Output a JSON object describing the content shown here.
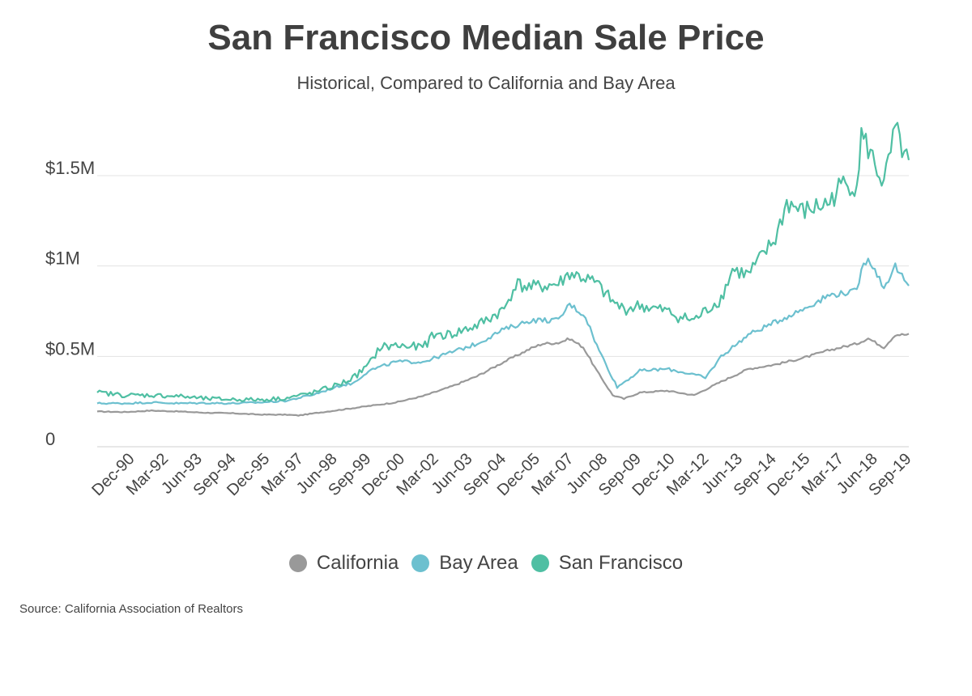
{
  "title": "San Francisco Median Sale Price",
  "subtitle": "Historical,  Compared to California and Bay Area",
  "source": "Source:  California Association of Realtors",
  "legend": [
    {
      "label": "California",
      "color": "#999999"
    },
    {
      "label": "Bay Area",
      "color": "#6cc0cf"
    },
    {
      "label": "San Francisco",
      "color": "#4fbfa3"
    }
  ],
  "chart_data": {
    "type": "line",
    "ylim": [
      0,
      1800000
    ],
    "yticks": [
      {
        "value": 0,
        "label": "0"
      },
      {
        "value": 500000,
        "label": "$0.5M"
      },
      {
        "value": 1000000,
        "label": "$1M"
      },
      {
        "value": 1500000,
        "label": "$1.5M"
      }
    ],
    "xlim": [
      "1990-01",
      "2019-12"
    ],
    "xtick_labels": [
      "Dec-90",
      "Mar-92",
      "Jun-93",
      "Sep-94",
      "Dec-95",
      "Mar-97",
      "Jun-98",
      "Sep-99",
      "Dec-00",
      "Mar-02",
      "Jun-03",
      "Sep-04",
      "Dec-05",
      "Mar-07",
      "Jun-08",
      "Sep-09",
      "Dec-10",
      "Mar-12",
      "Jun-13",
      "Sep-14",
      "Dec-15",
      "Mar-17",
      "Jun-18",
      "Sep-19"
    ],
    "grid": true,
    "legend_position": "bottom",
    "series": [
      {
        "name": "California",
        "color": "#999999",
        "points": [
          [
            "1990-01",
            195000
          ],
          [
            "1991-01",
            192000
          ],
          [
            "1992-01",
            200000
          ],
          [
            "1993-01",
            195000
          ],
          [
            "1994-01",
            188000
          ],
          [
            "1995-01",
            185000
          ],
          [
            "1996-01",
            178000
          ],
          [
            "1997-01",
            177000
          ],
          [
            "1997-06",
            173000
          ],
          [
            "1998-01",
            185000
          ],
          [
            "1999-01",
            205000
          ],
          [
            "2000-01",
            225000
          ],
          [
            "2001-01",
            245000
          ],
          [
            "2002-01",
            280000
          ],
          [
            "2003-01",
            330000
          ],
          [
            "2004-01",
            390000
          ],
          [
            "2005-01",
            470000
          ],
          [
            "2006-01",
            545000
          ],
          [
            "2006-06",
            570000
          ],
          [
            "2007-01",
            575000
          ],
          [
            "2007-06",
            598000
          ],
          [
            "2007-12",
            550000
          ],
          [
            "2008-06",
            420000
          ],
          [
            "2009-01",
            285000
          ],
          [
            "2009-06",
            265000
          ],
          [
            "2010-01",
            300000
          ],
          [
            "2011-01",
            310000
          ],
          [
            "2012-01",
            285000
          ],
          [
            "2013-01",
            360000
          ],
          [
            "2014-01",
            430000
          ],
          [
            "2015-01",
            455000
          ],
          [
            "2016-01",
            490000
          ],
          [
            "2017-01",
            535000
          ],
          [
            "2018-01",
            570000
          ],
          [
            "2018-06",
            600000
          ],
          [
            "2019-01",
            550000
          ],
          [
            "2019-06",
            620000
          ],
          [
            "2019-12",
            620000
          ]
        ]
      },
      {
        "name": "Bay Area",
        "color": "#6cc0cf",
        "points": [
          [
            "1990-01",
            240000
          ],
          [
            "1991-01",
            240000
          ],
          [
            "1992-01",
            245000
          ],
          [
            "1993-01",
            240000
          ],
          [
            "1994-01",
            242000
          ],
          [
            "1995-01",
            240000
          ],
          [
            "1996-01",
            245000
          ],
          [
            "1997-01",
            255000
          ],
          [
            "1998-01",
            290000
          ],
          [
            "1999-01",
            340000
          ],
          [
            "1999-06",
            350000
          ],
          [
            "2000-01",
            420000
          ],
          [
            "2001-01",
            470000
          ],
          [
            "2002-01",
            470000
          ],
          [
            "2002-06",
            490000
          ],
          [
            "2003-01",
            520000
          ],
          [
            "2004-01",
            570000
          ],
          [
            "2005-01",
            650000
          ],
          [
            "2006-01",
            700000
          ],
          [
            "2007-01",
            700000
          ],
          [
            "2007-06",
            790000
          ],
          [
            "2008-01",
            720000
          ],
          [
            "2008-06",
            560000
          ],
          [
            "2009-01",
            380000
          ],
          [
            "2009-03",
            330000
          ],
          [
            "2010-01",
            420000
          ],
          [
            "2011-01",
            430000
          ],
          [
            "2012-01",
            400000
          ],
          [
            "2012-06",
            380000
          ],
          [
            "2013-01",
            500000
          ],
          [
            "2014-01",
            620000
          ],
          [
            "2015-01",
            690000
          ],
          [
            "2016-01",
            760000
          ],
          [
            "2017-01",
            840000
          ],
          [
            "2018-01",
            860000
          ],
          [
            "2018-03",
            980000
          ],
          [
            "2018-06",
            1050000
          ],
          [
            "2019-01",
            880000
          ],
          [
            "2019-06",
            1000000
          ],
          [
            "2019-12",
            880000
          ]
        ]
      },
      {
        "name": "San Francisco",
        "color": "#4fbfa3",
        "points": [
          [
            "1990-01",
            300000
          ],
          [
            "1991-01",
            285000
          ],
          [
            "1992-01",
            285000
          ],
          [
            "1993-01",
            280000
          ],
          [
            "1994-01",
            265000
          ],
          [
            "1995-01",
            262000
          ],
          [
            "1996-01",
            260000
          ],
          [
            "1997-01",
            270000
          ],
          [
            "1998-01",
            300000
          ],
          [
            "1999-01",
            350000
          ],
          [
            "1999-06",
            380000
          ],
          [
            "2000-01",
            450000
          ],
          [
            "2000-06",
            550000
          ],
          [
            "2001-01",
            560000
          ],
          [
            "2002-01",
            550000
          ],
          [
            "2002-06",
            620000
          ],
          [
            "2003-01",
            620000
          ],
          [
            "2004-01",
            670000
          ],
          [
            "2005-01",
            760000
          ],
          [
            "2005-06",
            900000
          ],
          [
            "2006-01",
            880000
          ],
          [
            "2007-01",
            900000
          ],
          [
            "2007-06",
            960000
          ],
          [
            "2008-01",
            930000
          ],
          [
            "2008-06",
            900000
          ],
          [
            "2009-01",
            800000
          ],
          [
            "2009-06",
            760000
          ],
          [
            "2010-01",
            780000
          ],
          [
            "2011-01",
            750000
          ],
          [
            "2011-06",
            720000
          ],
          [
            "2012-01",
            700000
          ],
          [
            "2013-01",
            820000
          ],
          [
            "2013-06",
            980000
          ],
          [
            "2014-01",
            950000
          ],
          [
            "2015-01",
            1150000
          ],
          [
            "2015-06",
            1350000
          ],
          [
            "2016-01",
            1300000
          ],
          [
            "2017-01",
            1350000
          ],
          [
            "2017-06",
            1450000
          ],
          [
            "2018-01",
            1450000
          ],
          [
            "2018-03",
            1720000
          ],
          [
            "2018-06",
            1650000
          ],
          [
            "2019-01",
            1450000
          ],
          [
            "2019-06",
            1750000
          ],
          [
            "2019-12",
            1550000
          ]
        ]
      }
    ]
  }
}
